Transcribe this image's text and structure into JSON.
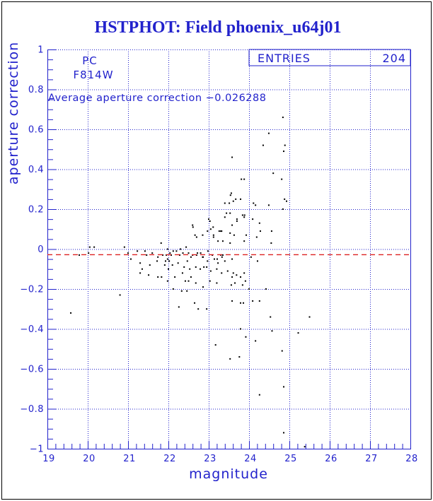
{
  "window": {
    "title": "HSTPHOT: Field phoenix_u64j01"
  },
  "chart_data": {
    "type": "scatter",
    "title": "HSTPHOT: Field phoenix_u64j01",
    "xlabel": "magnitude",
    "ylabel": "aperture correction",
    "xlim": [
      19,
      28
    ],
    "ylim": [
      -1,
      1
    ],
    "x_major_ticks": [
      19,
      20,
      21,
      22,
      23,
      24,
      25,
      26,
      27,
      28
    ],
    "x_tick_labels": [
      "19",
      "20",
      "21",
      "22",
      "23",
      "24",
      "25",
      "26",
      "27",
      "28"
    ],
    "y_major_ticks": [
      1,
      0.8,
      0.6,
      0.4,
      0.2,
      0,
      -0.2,
      -0.4,
      -0.6,
      -0.8,
      -1
    ],
    "y_tick_labels": [
      "1",
      "0.8",
      "0.6",
      "0.4",
      "0.2",
      "0",
      "−0.2",
      "−0.4",
      "−0.6",
      "−0.8",
      "−1"
    ],
    "x_minor_step": 0.2,
    "y_minor_step": 0.05,
    "grid": true,
    "legend_position": "none",
    "detector_label": "PC",
    "filter_label": "F814W",
    "average_label": "Average aperture correction −0.026288",
    "average_value": -0.026288,
    "entries": {
      "label": "ENTRIES",
      "value": "204"
    },
    "colors": {
      "axis": "#2222cc",
      "grid": "#2222cc",
      "points": "#000000",
      "mean_line": "#dd2222",
      "title": "#1111cc"
    },
    "points": [
      [
        19.58,
        -0.32
      ],
      [
        19.79,
        -0.03
      ],
      [
        20.02,
        -0.02
      ],
      [
        20.05,
        0.01
      ],
      [
        20.16,
        0.01
      ],
      [
        20.8,
        -0.23
      ],
      [
        20.91,
        0.01
      ],
      [
        21.0,
        -0.02
      ],
      [
        21.07,
        -0.05
      ],
      [
        21.23,
        -0.01
      ],
      [
        21.3,
        -0.07
      ],
      [
        21.3,
        -0.12
      ],
      [
        21.35,
        -0.1
      ],
      [
        21.42,
        -0.01
      ],
      [
        21.46,
        -0.03
      ],
      [
        21.51,
        -0.13
      ],
      [
        21.54,
        -0.08
      ],
      [
        21.6,
        -0.02
      ],
      [
        21.72,
        -0.06
      ],
      [
        21.74,
        -0.04
      ],
      [
        21.74,
        -0.14
      ],
      [
        21.82,
        0.03
      ],
      [
        21.83,
        -0.14
      ],
      [
        21.86,
        -0.03
      ],
      [
        21.91,
        -0.08
      ],
      [
        21.93,
        -0.06
      ],
      [
        21.95,
        -0.03
      ],
      [
        21.98,
        0.0
      ],
      [
        21.98,
        -0.05
      ],
      [
        21.98,
        -0.16
      ],
      [
        22.0,
        -0.1
      ],
      [
        22.02,
        -0.06
      ],
      [
        22.04,
        -0.02
      ],
      [
        22.07,
        -0.03
      ],
      [
        22.1,
        -0.08
      ],
      [
        22.12,
        -0.01
      ],
      [
        22.12,
        -0.2
      ],
      [
        22.16,
        -0.14
      ],
      [
        22.2,
        -0.01
      ],
      [
        22.24,
        -0.07
      ],
      [
        22.26,
        -0.29
      ],
      [
        22.28,
        -0.03
      ],
      [
        22.3,
        0.0
      ],
      [
        22.33,
        -0.21
      ],
      [
        22.35,
        -0.12
      ],
      [
        22.36,
        -0.02
      ],
      [
        22.39,
        -0.09
      ],
      [
        22.42,
        -0.16
      ],
      [
        22.44,
        0.01
      ],
      [
        22.46,
        -0.21
      ],
      [
        22.47,
        -0.06
      ],
      [
        22.5,
        -0.02
      ],
      [
        22.5,
        -0.16
      ],
      [
        22.53,
        -0.1
      ],
      [
        22.56,
        -0.14
      ],
      [
        22.56,
        -0.04
      ],
      [
        22.6,
        0.12
      ],
      [
        22.6,
        -0.03
      ],
      [
        22.61,
        0.11
      ],
      [
        22.65,
        -0.27
      ],
      [
        22.66,
        0.07
      ],
      [
        22.68,
        -0.17
      ],
      [
        22.68,
        -0.09
      ],
      [
        22.7,
        0.06
      ],
      [
        22.7,
        -0.03
      ],
      [
        22.72,
        -0.02
      ],
      [
        22.74,
        -0.3
      ],
      [
        22.79,
        -0.1
      ],
      [
        22.8,
        -0.02
      ],
      [
        22.85,
        0.07
      ],
      [
        22.85,
        -0.04
      ],
      [
        22.86,
        -0.19
      ],
      [
        22.86,
        -0.04
      ],
      [
        22.88,
        -0.09
      ],
      [
        22.95,
        -0.09
      ],
      [
        22.95,
        -0.3
      ],
      [
        22.97,
        0.09
      ],
      [
        22.97,
        -0.06
      ],
      [
        22.98,
        -0.01
      ],
      [
        23.0,
        0.15
      ],
      [
        23.03,
        0.14
      ],
      [
        23.03,
        -0.16
      ],
      [
        23.05,
        0.1
      ],
      [
        23.05,
        -0.11
      ],
      [
        23.09,
        -0.03
      ],
      [
        23.11,
        0.11
      ],
      [
        23.12,
        0.07
      ],
      [
        23.12,
        0.06
      ],
      [
        23.14,
        -0.05
      ],
      [
        23.17,
        -0.48
      ],
      [
        23.2,
        -0.1
      ],
      [
        23.2,
        -0.17
      ],
      [
        23.21,
        -0.05
      ],
      [
        23.23,
        0.04
      ],
      [
        23.23,
        -0.07
      ],
      [
        23.26,
        0.09
      ],
      [
        23.3,
        0.09
      ],
      [
        23.3,
        -0.03
      ],
      [
        23.32,
        0.09
      ],
      [
        23.32,
        -0.12
      ],
      [
        23.33,
        -0.04
      ],
      [
        23.35,
        0.04
      ],
      [
        23.35,
        -0.03
      ],
      [
        23.4,
        0.23
      ],
      [
        23.4,
        0.16
      ],
      [
        23.4,
        -0.06
      ],
      [
        23.44,
        0.18
      ],
      [
        23.47,
        -0.11
      ],
      [
        23.51,
        0.23
      ],
      [
        23.53,
        0.18
      ],
      [
        23.53,
        0.08
      ],
      [
        23.53,
        0.03
      ],
      [
        23.53,
        -0.55
      ],
      [
        23.54,
        0.27
      ],
      [
        23.56,
        0.28
      ],
      [
        23.56,
        -0.18
      ],
      [
        23.58,
        0.46
      ],
      [
        23.58,
        0.12
      ],
      [
        23.58,
        -0.05
      ],
      [
        23.58,
        -0.14
      ],
      [
        23.58,
        -0.26
      ],
      [
        23.61,
        0.24
      ],
      [
        23.61,
        -0.12
      ],
      [
        23.63,
        0.07
      ],
      [
        23.65,
        -0.17
      ],
      [
        23.67,
        0.25
      ],
      [
        23.69,
        -0.13
      ],
      [
        23.7,
        0.15
      ],
      [
        23.7,
        0.14
      ],
      [
        23.76,
        -0.54
      ],
      [
        23.79,
        0.25
      ],
      [
        23.79,
        -0.14
      ],
      [
        23.79,
        -0.27
      ],
      [
        23.79,
        -0.4
      ],
      [
        23.81,
        0.35
      ],
      [
        23.84,
        0.17
      ],
      [
        23.84,
        -0.18
      ],
      [
        23.86,
        -0.27
      ],
      [
        23.88,
        0.35
      ],
      [
        23.88,
        0.16
      ],
      [
        23.88,
        0.04
      ],
      [
        23.88,
        -0.12
      ],
      [
        23.89,
        0.17
      ],
      [
        23.91,
        -0.16
      ],
      [
        23.92,
        -0.44
      ],
      [
        23.93,
        0.07
      ],
      [
        24.0,
        -0.2
      ],
      [
        24.05,
        -0.04
      ],
      [
        24.09,
        0.15
      ],
      [
        24.09,
        -0.26
      ],
      [
        24.11,
        0.23
      ],
      [
        24.16,
        0.22
      ],
      [
        24.16,
        -0.46
      ],
      [
        24.19,
        0.06
      ],
      [
        24.21,
        -0.06
      ],
      [
        24.26,
        0.13
      ],
      [
        24.26,
        -0.26
      ],
      [
        24.26,
        -0.73
      ],
      [
        24.28,
        0.09
      ],
      [
        24.35,
        0.52
      ],
      [
        24.42,
        -0.2
      ],
      [
        24.49,
        0.58
      ],
      [
        24.49,
        0.22
      ],
      [
        24.53,
        -0.34
      ],
      [
        24.55,
        0.03
      ],
      [
        24.56,
        0.09
      ],
      [
        24.57,
        -0.41
      ],
      [
        24.6,
        0.38
      ],
      [
        24.81,
        0.35
      ],
      [
        24.82,
        -0.51
      ],
      [
        24.84,
        0.66
      ],
      [
        24.84,
        0.2
      ],
      [
        24.86,
        -0.69
      ],
      [
        24.86,
        -0.92
      ],
      [
        24.86,
        0.49
      ],
      [
        24.88,
        0.25
      ],
      [
        24.89,
        0.52
      ],
      [
        24.93,
        0.24
      ],
      [
        25.22,
        -0.42
      ],
      [
        25.38,
        -0.99
      ],
      [
        25.5,
        -0.34
      ]
    ]
  }
}
